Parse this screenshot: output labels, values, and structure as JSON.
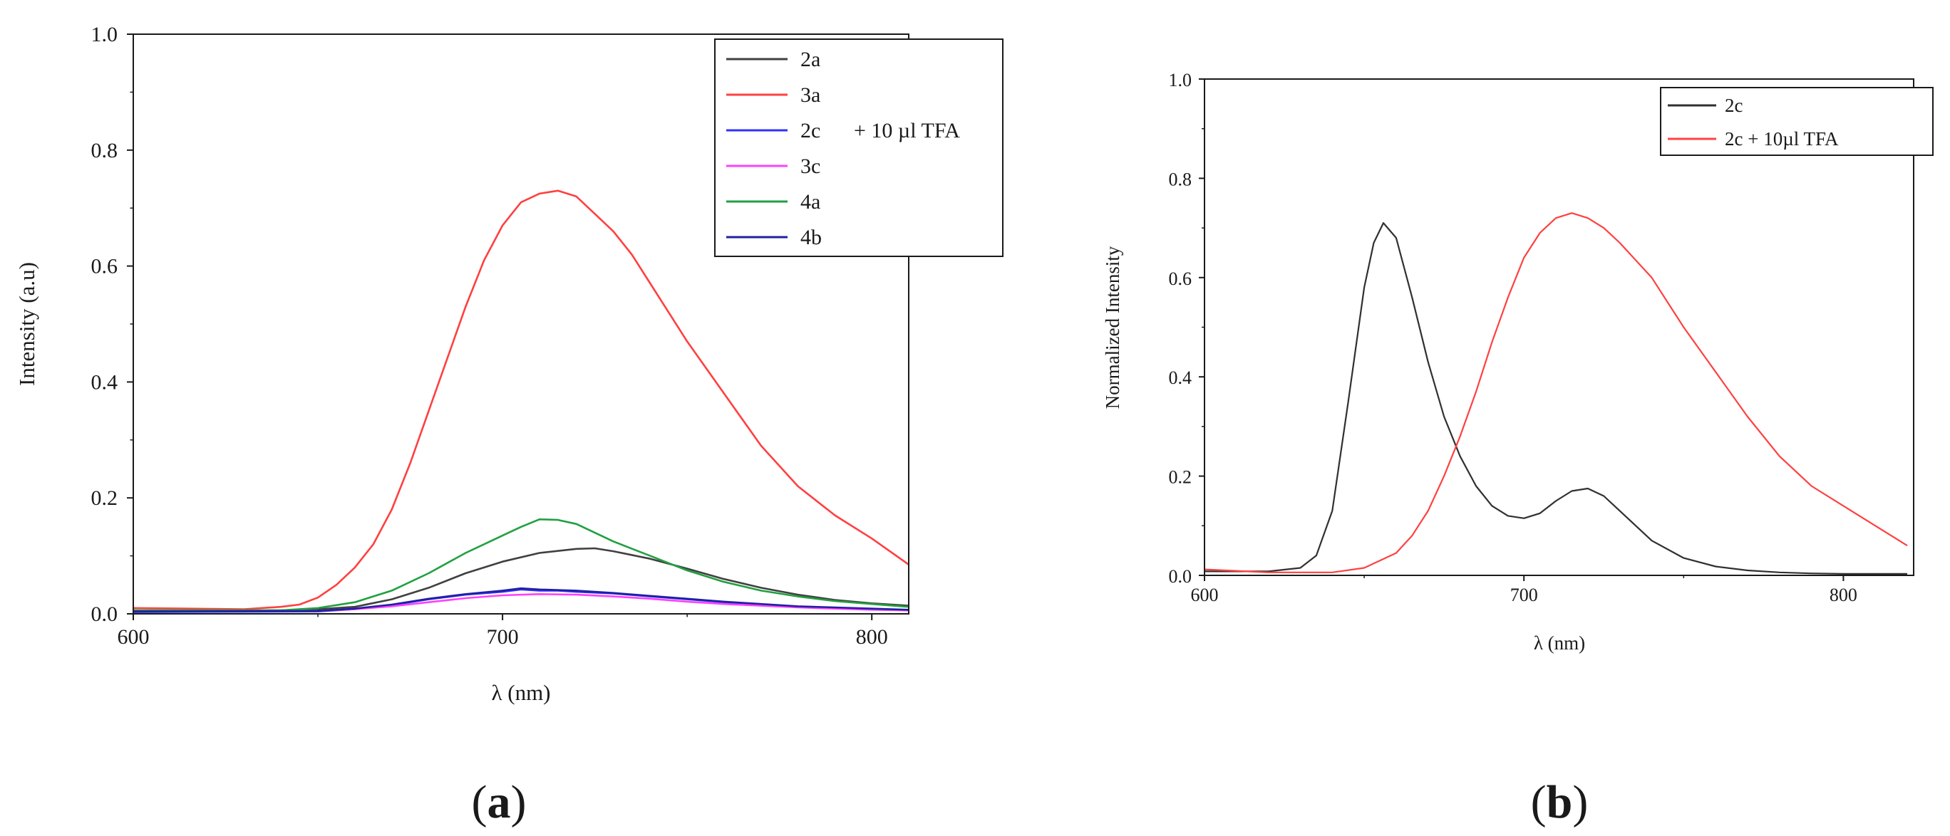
{
  "chart_data": [
    {
      "panel": "a",
      "type": "line",
      "caption_letter": "a",
      "xlabel": "λ (nm)",
      "ylabel": "Intensity (a.u)",
      "xlim": [
        600,
        810
      ],
      "ylim": [
        0,
        1.0
      ],
      "xticks": [
        {
          "value": 600,
          "label": "600"
        },
        {
          "value": 700,
          "label": "700"
        },
        {
          "value": 800,
          "label": "800"
        }
      ],
      "yticks": [
        {
          "value": 0.0,
          "label": "0.0"
        },
        {
          "value": 0.2,
          "label": "0.2"
        },
        {
          "value": 0.4,
          "label": "0.4"
        },
        {
          "value": 0.6,
          "label": "0.6"
        },
        {
          "value": 0.8,
          "label": "0.8"
        },
        {
          "value": 1.0,
          "label": "1.0"
        }
      ],
      "legend_position": "top-right",
      "legend_note": "+ 10 µl TFA",
      "series": [
        {
          "name": "2a",
          "color": "#404040",
          "x": [
            600,
            640,
            650,
            660,
            670,
            680,
            690,
            700,
            710,
            720,
            725,
            730,
            740,
            750,
            760,
            770,
            780,
            790,
            800,
            810
          ],
          "y": [
            0.005,
            0.006,
            0.008,
            0.012,
            0.025,
            0.045,
            0.07,
            0.09,
            0.105,
            0.112,
            0.113,
            0.108,
            0.095,
            0.078,
            0.06,
            0.045,
            0.033,
            0.024,
            0.018,
            0.014
          ]
        },
        {
          "name": "3a",
          "color": "#ff4040",
          "x": [
            600,
            630,
            640,
            645,
            650,
            655,
            660,
            665,
            670,
            675,
            680,
            685,
            690,
            695,
            700,
            705,
            710,
            715,
            720,
            725,
            730,
            735,
            740,
            745,
            750,
            760,
            770,
            780,
            790,
            800,
            810
          ],
          "y": [
            0.01,
            0.008,
            0.012,
            0.016,
            0.028,
            0.05,
            0.08,
            0.12,
            0.18,
            0.26,
            0.35,
            0.44,
            0.53,
            0.61,
            0.67,
            0.71,
            0.725,
            0.73,
            0.72,
            0.69,
            0.66,
            0.62,
            0.57,
            0.52,
            0.47,
            0.38,
            0.29,
            0.22,
            0.17,
            0.13,
            0.085
          ]
        },
        {
          "name": "2c",
          "color": "#3030ff",
          "x": [
            600,
            650,
            660,
            670,
            680,
            690,
            700,
            705,
            710,
            715,
            720,
            730,
            740,
            750,
            760,
            770,
            780,
            790,
            800,
            810
          ],
          "y": [
            0.003,
            0.004,
            0.008,
            0.015,
            0.025,
            0.033,
            0.038,
            0.042,
            0.04,
            0.04,
            0.038,
            0.035,
            0.03,
            0.025,
            0.02,
            0.015,
            0.012,
            0.01,
            0.008,
            0.006
          ]
        },
        {
          "name": "3c",
          "color": "#ff40ff",
          "x": [
            600,
            650,
            660,
            670,
            680,
            690,
            700,
            710,
            720,
            730,
            740,
            750,
            760,
            770,
            780,
            790,
            800,
            810
          ],
          "y": [
            0.005,
            0.005,
            0.008,
            0.013,
            0.02,
            0.027,
            0.032,
            0.034,
            0.033,
            0.03,
            0.026,
            0.021,
            0.017,
            0.014,
            0.011,
            0.009,
            0.007,
            0.006
          ]
        },
        {
          "name": "4a",
          "color": "#20a040",
          "x": [
            600,
            640,
            650,
            660,
            670,
            680,
            690,
            700,
            705,
            710,
            715,
            720,
            730,
            740,
            750,
            760,
            770,
            780,
            790,
            800,
            810
          ],
          "y": [
            0.006,
            0.006,
            0.01,
            0.02,
            0.04,
            0.07,
            0.105,
            0.135,
            0.15,
            0.163,
            0.162,
            0.155,
            0.125,
            0.1,
            0.075,
            0.055,
            0.04,
            0.03,
            0.022,
            0.017,
            0.012
          ]
        },
        {
          "name": "4b",
          "color": "#2020a0",
          "x": [
            600,
            650,
            660,
            670,
            680,
            690,
            700,
            705,
            710,
            720,
            730,
            740,
            750,
            760,
            770,
            780,
            790,
            800,
            810
          ],
          "y": [
            0.004,
            0.005,
            0.009,
            0.016,
            0.026,
            0.034,
            0.04,
            0.044,
            0.042,
            0.04,
            0.036,
            0.031,
            0.026,
            0.021,
            0.017,
            0.013,
            0.011,
            0.009,
            0.007
          ]
        }
      ]
    },
    {
      "panel": "b",
      "type": "line",
      "caption_letter": "b",
      "xlabel": "λ (nm)",
      "ylabel": "Normalized Intensity",
      "xlim": [
        600,
        822
      ],
      "ylim": [
        0,
        1.0
      ],
      "xticks": [
        {
          "value": 600,
          "label": "600"
        },
        {
          "value": 700,
          "label": "700"
        },
        {
          "value": 800,
          "label": "800"
        }
      ],
      "yticks": [
        {
          "value": 0.0,
          "label": "0.0"
        },
        {
          "value": 0.2,
          "label": "0.2"
        },
        {
          "value": 0.4,
          "label": "0.4"
        },
        {
          "value": 0.6,
          "label": "0.6"
        },
        {
          "value": 0.8,
          "label": "0.8"
        },
        {
          "value": 1.0,
          "label": "1.0"
        }
      ],
      "legend_position": "top-right",
      "series": [
        {
          "name": "2c",
          "color": "#303030",
          "x": [
            600,
            620,
            630,
            635,
            640,
            645,
            650,
            653,
            656,
            660,
            665,
            670,
            675,
            680,
            685,
            690,
            695,
            700,
            705,
            710,
            715,
            720,
            725,
            730,
            735,
            740,
            750,
            760,
            770,
            780,
            790,
            800,
            810,
            820
          ],
          "y": [
            0.008,
            0.008,
            0.015,
            0.04,
            0.13,
            0.35,
            0.58,
            0.67,
            0.71,
            0.68,
            0.56,
            0.43,
            0.32,
            0.24,
            0.18,
            0.14,
            0.12,
            0.115,
            0.125,
            0.15,
            0.17,
            0.175,
            0.16,
            0.13,
            0.1,
            0.07,
            0.035,
            0.018,
            0.01,
            0.006,
            0.004,
            0.003,
            0.003,
            0.003
          ]
        },
        {
          "name": "2c + 10µl TFA",
          "color": "#ff4040",
          "x": [
            600,
            620,
            640,
            650,
            660,
            665,
            670,
            675,
            680,
            685,
            690,
            695,
            700,
            705,
            710,
            715,
            720,
            725,
            730,
            740,
            750,
            760,
            770,
            780,
            790,
            800,
            810,
            820
          ],
          "y": [
            0.012,
            0.006,
            0.006,
            0.015,
            0.045,
            0.08,
            0.13,
            0.2,
            0.28,
            0.37,
            0.47,
            0.56,
            0.64,
            0.69,
            0.72,
            0.73,
            0.72,
            0.7,
            0.67,
            0.6,
            0.5,
            0.41,
            0.32,
            0.24,
            0.18,
            0.14,
            0.1,
            0.06
          ]
        }
      ]
    }
  ]
}
